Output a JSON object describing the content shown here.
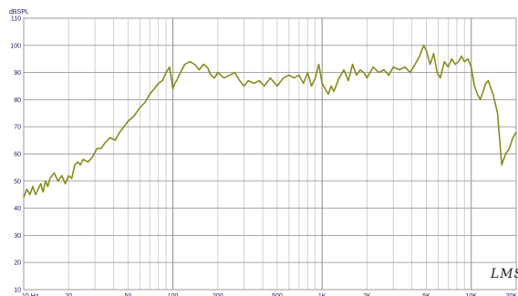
{
  "chart_data": {
    "type": "line",
    "x_scale": "log",
    "xlim": [
      10,
      20000
    ],
    "ylim": [
      10,
      110
    ],
    "y_unit_label": "dBSPL",
    "y_ticks": [
      10,
      20,
      30,
      40,
      50,
      60,
      70,
      80,
      90,
      100,
      110
    ],
    "x_tick_labels": [
      {
        "x": 10,
        "label": "10 Hz"
      },
      {
        "x": 20,
        "label": "20"
      },
      {
        "x": 50,
        "label": "50"
      },
      {
        "x": 100,
        "label": "100"
      },
      {
        "x": 200,
        "label": "200"
      },
      {
        "x": 500,
        "label": "500"
      },
      {
        "x": 1000,
        "label": "1K"
      },
      {
        "x": 2000,
        "label": "2K"
      },
      {
        "x": 5000,
        "label": "5K"
      },
      {
        "x": 10000,
        "label": "10K"
      },
      {
        "x": 20000,
        "label": "20K"
      }
    ],
    "grid": true,
    "line_color": "#8a8a1e",
    "series": [
      {
        "x": [
          10,
          10.5,
          11,
          11.5,
          12,
          12.5,
          13,
          13.5,
          14,
          14.5,
          15,
          16,
          17,
          18,
          19,
          20,
          21,
          22,
          23,
          24,
          25,
          27,
          29,
          31,
          33,
          35,
          38,
          41,
          44,
          47,
          50,
          55,
          60,
          65,
          70,
          75,
          80,
          85,
          90,
          95,
          100,
          103,
          106,
          110,
          115,
          120,
          130,
          140,
          150,
          160,
          170,
          180,
          190,
          200,
          220,
          240,
          260,
          280,
          300,
          320,
          350,
          380,
          410,
          450,
          500,
          550,
          600,
          650,
          700,
          750,
          800,
          850,
          900,
          950,
          1000,
          1050,
          1100,
          1150,
          1200,
          1300,
          1400,
          1500,
          1600,
          1700,
          1800,
          1900,
          2000,
          2200,
          2400,
          2600,
          2800,
          3000,
          3300,
          3600,
          3900,
          4200,
          4500,
          4800,
          5000,
          5300,
          5600,
          5900,
          6200,
          6600,
          7000,
          7400,
          7800,
          8200,
          8600,
          9000,
          9500,
          10000,
          10500,
          11000,
          11500,
          12000,
          12500,
          13000,
          14000,
          15000,
          16000,
          17000,
          18000,
          19000,
          20000
        ],
        "y": [
          44,
          47,
          45,
          48,
          45,
          47,
          49,
          46,
          50,
          48,
          51,
          53,
          50,
          52,
          49,
          52,
          51,
          56,
          57,
          56,
          58,
          57,
          59,
          62,
          62,
          64,
          66,
          65,
          68,
          70,
          72,
          74,
          77,
          79,
          82,
          84,
          86,
          87,
          90,
          92,
          84,
          86,
          87,
          89,
          91,
          93,
          94,
          93,
          91,
          93,
          92,
          89,
          88,
          90,
          88,
          89,
          90,
          87,
          85,
          87,
          86,
          87,
          85,
          88,
          85,
          88,
          89,
          88,
          89,
          86,
          90,
          85,
          88,
          93,
          86,
          84,
          82,
          85,
          83,
          88,
          91,
          87,
          93,
          89,
          91,
          90,
          88,
          92,
          90,
          91,
          89,
          92,
          91,
          92,
          90,
          93,
          96,
          100,
          98,
          93,
          97,
          90,
          88,
          94,
          92,
          95,
          93,
          94,
          96,
          94,
          95,
          92,
          85,
          82,
          80,
          83,
          86,
          87,
          82,
          75,
          56,
          60,
          62,
          66,
          68
        ]
      }
    ]
  },
  "brand": {
    "logo_text": "LMS"
  }
}
